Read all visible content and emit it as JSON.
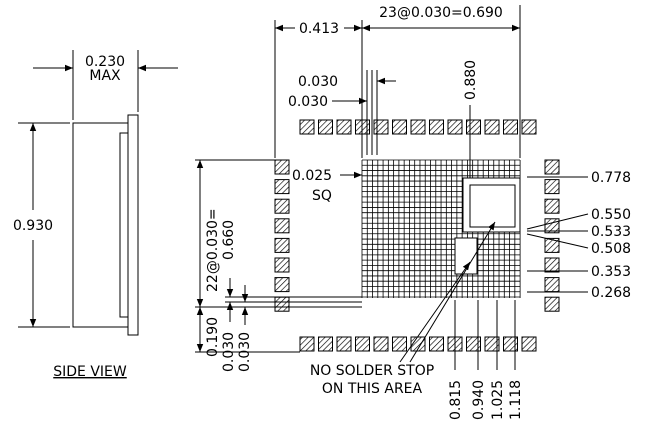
{
  "side_view": {
    "width": "0.230",
    "max": "MAX",
    "height": "0.930",
    "label": "SIDE VIEW"
  },
  "top_view": {
    "pitch_top": "23@0.030=0.690",
    "offset_left": "0.413",
    "pad_width": "0.030",
    "pad_space": "0.030",
    "height_top": "0.880",
    "pad_size": "0.025",
    "pad_shape": "SQ",
    "pitch_left": "22@0.030=",
    "span_left": "0.660",
    "offset_bottom": "0.190",
    "bottom_pad": "0.030",
    "bottom_space": "0.030",
    "right_dims": [
      "0.778",
      "0.550",
      "0.533",
      "0.508",
      "0.353",
      "0.268"
    ],
    "bottom_dims": [
      "0.815",
      "0.940",
      "1.025",
      "1.118"
    ],
    "note": [
      "NO SOLDER STOP",
      "ON THIS AREA"
    ]
  }
}
